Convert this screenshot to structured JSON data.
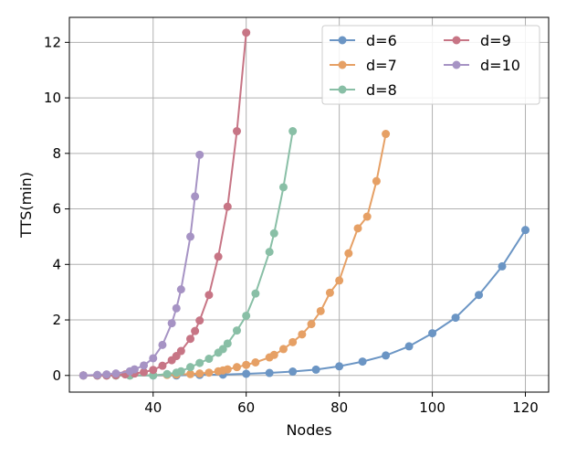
{
  "chart_data": {
    "type": "line",
    "xlabel": "Nodes",
    "ylabel": "TTS(min)",
    "xlim": [
      22,
      125
    ],
    "ylim": [
      -0.6,
      12.9
    ],
    "x_ticks": [
      40,
      60,
      80,
      100,
      120
    ],
    "y_ticks": [
      0,
      2,
      4,
      6,
      8,
      10,
      12
    ],
    "grid": true,
    "legend_placement": "top-right",
    "legend_columns": 2,
    "series": [
      {
        "name": "d=6",
        "color": "#6b95c4",
        "points": [
          [
            25,
            0.0
          ],
          [
            28,
            0.0
          ],
          [
            30,
            0.0
          ],
          [
            32,
            0.0
          ],
          [
            35,
            0.0
          ],
          [
            40,
            0.0
          ],
          [
            45,
            0.0
          ],
          [
            50,
            0.02
          ],
          [
            55,
            0.03
          ],
          [
            60,
            0.06
          ],
          [
            65,
            0.09
          ],
          [
            70,
            0.14
          ],
          [
            75,
            0.21
          ],
          [
            80,
            0.33
          ],
          [
            85,
            0.5
          ],
          [
            90,
            0.72
          ],
          [
            95,
            1.05
          ],
          [
            100,
            1.52
          ],
          [
            105,
            2.08
          ],
          [
            110,
            2.9
          ],
          [
            115,
            3.93
          ],
          [
            120,
            5.24
          ]
        ]
      },
      {
        "name": "d=7",
        "color": "#e6a065",
        "points": [
          [
            25,
            0.0
          ],
          [
            28,
            0.0
          ],
          [
            30,
            0.0
          ],
          [
            32,
            0.0
          ],
          [
            35,
            0.0
          ],
          [
            40,
            0.01
          ],
          [
            43,
            0.02
          ],
          [
            45,
            0.03
          ],
          [
            48,
            0.05
          ],
          [
            50,
            0.07
          ],
          [
            52,
            0.1
          ],
          [
            54,
            0.15
          ],
          [
            55,
            0.18
          ],
          [
            56,
            0.22
          ],
          [
            58,
            0.3
          ],
          [
            60,
            0.38
          ],
          [
            62,
            0.47
          ],
          [
            65,
            0.65
          ],
          [
            66,
            0.74
          ],
          [
            68,
            0.95
          ],
          [
            70,
            1.2
          ],
          [
            72,
            1.48
          ],
          [
            74,
            1.85
          ],
          [
            76,
            2.32
          ],
          [
            78,
            2.98
          ],
          [
            80,
            3.42
          ],
          [
            82,
            4.4
          ],
          [
            84,
            5.3
          ],
          [
            86,
            5.72
          ],
          [
            88,
            7.0
          ],
          [
            90,
            8.7
          ]
        ]
      },
      {
        "name": "d=8",
        "color": "#89bfa6",
        "points": [
          [
            25,
            0.0
          ],
          [
            28,
            0.0
          ],
          [
            30,
            0.0
          ],
          [
            32,
            0.0
          ],
          [
            35,
            0.0
          ],
          [
            40,
            0.0
          ],
          [
            43,
            0.05
          ],
          [
            45,
            0.1
          ],
          [
            46,
            0.15
          ],
          [
            48,
            0.3
          ],
          [
            50,
            0.45
          ],
          [
            52,
            0.6
          ],
          [
            54,
            0.82
          ],
          [
            55,
            0.95
          ],
          [
            56,
            1.15
          ],
          [
            58,
            1.62
          ],
          [
            60,
            2.15
          ],
          [
            62,
            2.95
          ],
          [
            65,
            4.45
          ],
          [
            66,
            5.12
          ],
          [
            68,
            6.78
          ],
          [
            70,
            8.8
          ]
        ]
      },
      {
        "name": "d=9",
        "color": "#c77585",
        "points": [
          [
            25,
            0.0
          ],
          [
            28,
            0.0
          ],
          [
            30,
            0.0
          ],
          [
            32,
            0.01
          ],
          [
            34,
            0.04
          ],
          [
            36,
            0.07
          ],
          [
            38,
            0.12
          ],
          [
            40,
            0.2
          ],
          [
            42,
            0.35
          ],
          [
            44,
            0.55
          ],
          [
            45,
            0.7
          ],
          [
            46,
            0.88
          ],
          [
            48,
            1.32
          ],
          [
            49,
            1.6
          ],
          [
            50,
            1.98
          ],
          [
            52,
            2.9
          ],
          [
            54,
            4.28
          ],
          [
            56,
            6.08
          ],
          [
            58,
            8.8
          ],
          [
            60,
            12.35
          ]
        ]
      },
      {
        "name": "d=10",
        "color": "#a693c4",
        "points": [
          [
            25,
            0.0
          ],
          [
            28,
            0.02
          ],
          [
            30,
            0.04
          ],
          [
            32,
            0.07
          ],
          [
            35,
            0.15
          ],
          [
            36,
            0.22
          ],
          [
            38,
            0.36
          ],
          [
            40,
            0.62
          ],
          [
            42,
            1.1
          ],
          [
            44,
            1.88
          ],
          [
            45,
            2.42
          ],
          [
            46,
            3.1
          ],
          [
            48,
            5.0
          ],
          [
            49,
            6.45
          ],
          [
            50,
            7.95
          ]
        ]
      }
    ]
  }
}
